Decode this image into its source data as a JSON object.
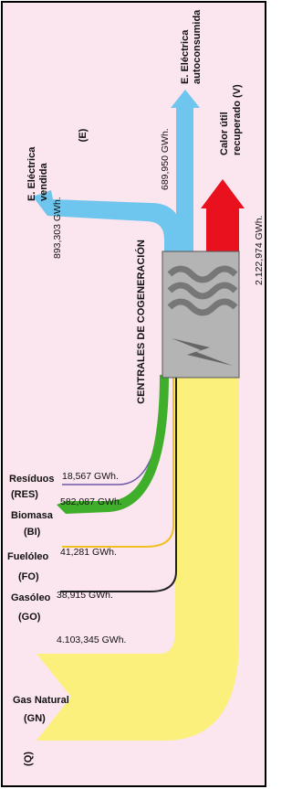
{
  "labels": {
    "e": "(E)",
    "q": "(Q)",
    "center": "CENTRALES DE COGENERACIÓN"
  },
  "outputs": [
    {
      "lines": [
        "E. Eléctrica",
        "vendida"
      ],
      "value": "893,303 GWh."
    },
    {
      "lines": [
        "E. Eléctrica",
        "autoconsumida"
      ],
      "value": "689,950 GWh."
    },
    {
      "lines": [
        "Calor útil",
        "recuperado (V)"
      ],
      "value": "2.122,974 GWh."
    }
  ],
  "inputs": [
    {
      "lines": [
        "Resíduos",
        "(RES)"
      ],
      "value": "18,567 GWh."
    },
    {
      "lines": [
        "Biomasa",
        "(BI)"
      ],
      "value": "582,087 GWh."
    },
    {
      "lines": [
        "Fuelóleo",
        "(FO)"
      ],
      "value": "41,281 GWh."
    },
    {
      "lines": [
        "Gasóleo",
        "(GO)"
      ],
      "value": "38,915 GWh."
    },
    {
      "lines": [
        "Gas Natural",
        "(GN)"
      ],
      "value": "4.103,345 GWh."
    }
  ]
}
